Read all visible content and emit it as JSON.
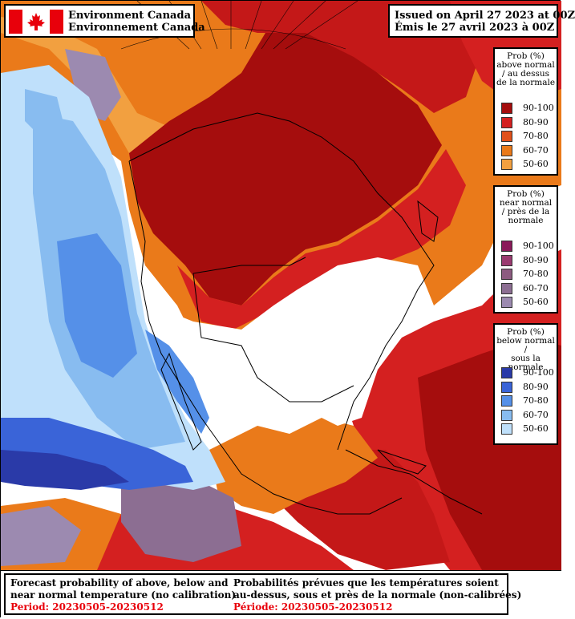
{
  "header": {
    "agency_en": "Environment Canada",
    "agency_fr": "Environnement Canada",
    "issued_en": "Issued on April 27 2023 at 00Z",
    "issued_fr": "Émis le 27 avril 2023 à 00Z"
  },
  "legends": {
    "above": {
      "title_lines": [
        "Prob (%)",
        "above normal",
        "/ au dessus",
        "de la normale"
      ],
      "items": [
        {
          "label": "90-100",
          "color": "#a50d0d"
        },
        {
          "label": "80-90",
          "color": "#d42020"
        },
        {
          "label": "70-80",
          "color": "#e0501a"
        },
        {
          "label": "60-70",
          "color": "#ea7a1a"
        },
        {
          "label": "50-60",
          "color": "#f2a040"
        }
      ]
    },
    "near": {
      "title_lines": [
        "Prob (%)",
        "near normal",
        "/ près de la",
        "normale"
      ],
      "items": [
        {
          "label": "90-100",
          "color": "#8a1a5a"
        },
        {
          "label": "80-90",
          "color": "#9a3a70"
        },
        {
          "label": "70-80",
          "color": "#8c5b80"
        },
        {
          "label": "60-70",
          "color": "#8c6e92"
        },
        {
          "label": "50-60",
          "color": "#9c8ab0"
        }
      ]
    },
    "below": {
      "title_lines": [
        "Prob (%)",
        "below normal /",
        "sous la normale"
      ],
      "items": [
        {
          "label": "90-100",
          "color": "#2a3aa8"
        },
        {
          "label": "80-90",
          "color": "#3a64d8"
        },
        {
          "label": "70-80",
          "color": "#5590e8"
        },
        {
          "label": "60-70",
          "color": "#88bcf0"
        },
        {
          "label": "50-60",
          "color": "#bfe0fb"
        }
      ]
    }
  },
  "footer": {
    "desc_en_1": "Forecast probability of above, below and",
    "desc_en_2": "near normal temperature (no calibration)",
    "period_en": "Period: 20230505-20230512",
    "desc_fr_1": "Probabilités prévues que les températures soient",
    "desc_fr_2": "au-dessus, sous et près de la normale (non-calibrées)",
    "period_fr": "Période: 20230505-20230512"
  }
}
